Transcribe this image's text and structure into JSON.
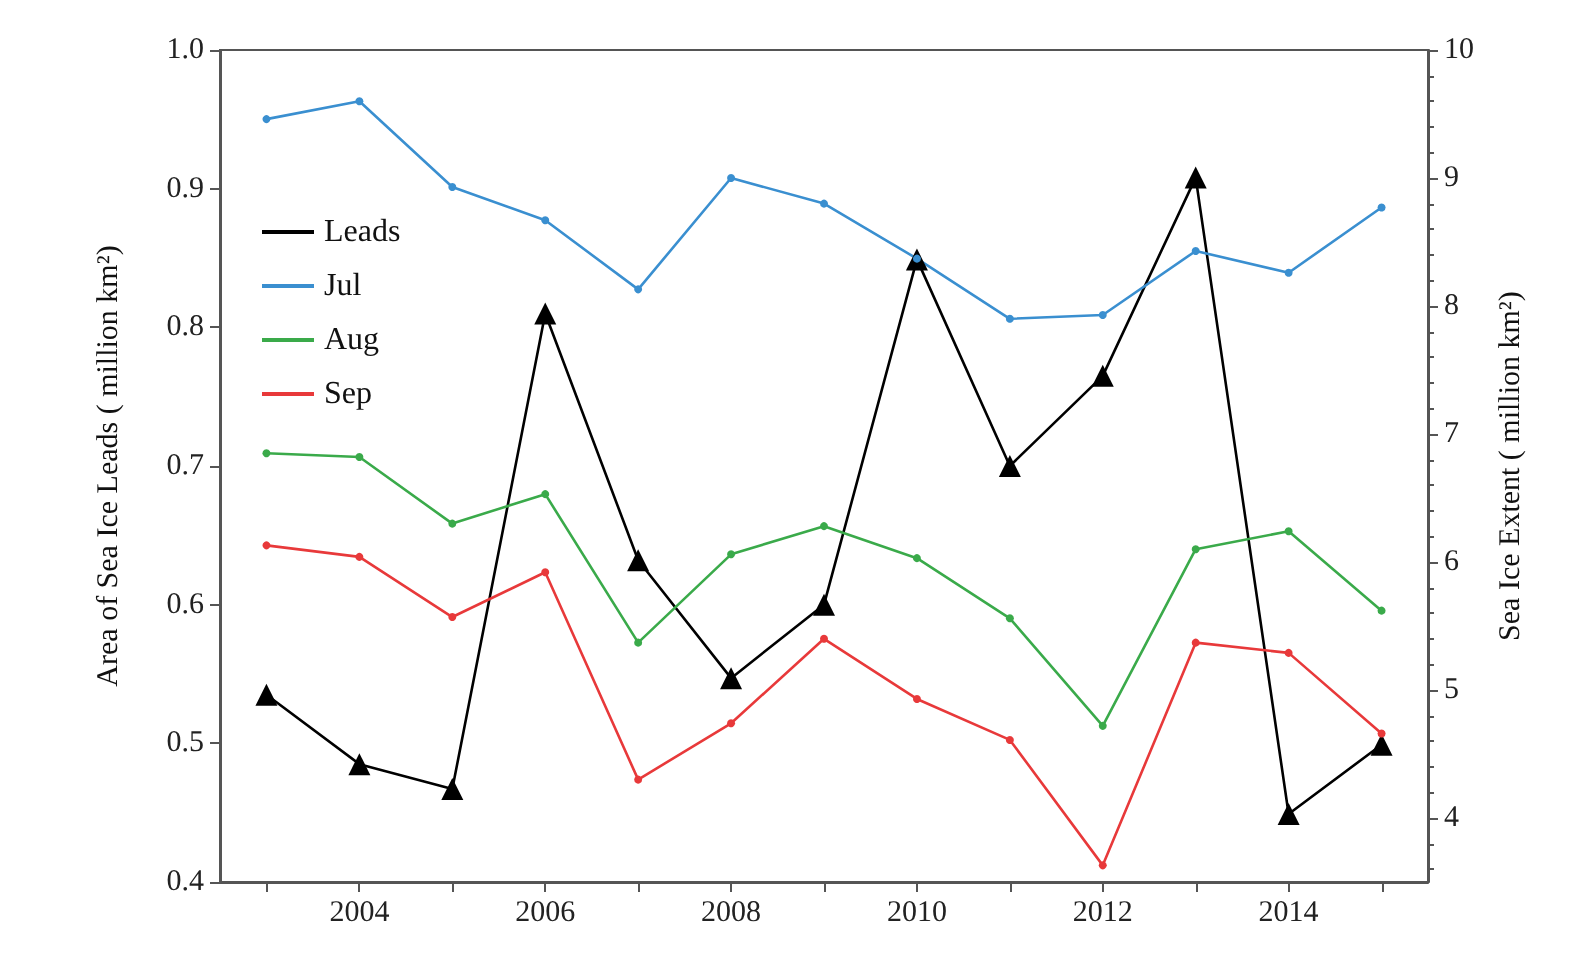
{
  "chart_data": {
    "type": "line",
    "ylabel": "Area of Sea Ice Leads ( million km²)",
    "y2label": "Sea Ice Extent ( million km²)",
    "x": [
      2003,
      2004,
      2005,
      2006,
      2007,
      2008,
      2009,
      2010,
      2011,
      2012,
      2013,
      2014,
      2015
    ],
    "series": [
      {
        "name": "Leads",
        "color": "#000000",
        "marker": "triangle",
        "values": [
          0.535,
          0.485,
          0.467,
          0.81,
          0.632,
          0.547,
          0.6,
          0.849,
          0.7,
          0.765,
          0.908,
          0.449,
          0.499
        ]
      },
      {
        "name": "Jul",
        "color": "#3a8fd0",
        "marker": "circle",
        "axis": "y2",
        "values": [
          9.46,
          9.6,
          8.93,
          8.67,
          8.13,
          9.0,
          8.8,
          8.37,
          7.9,
          7.93,
          8.43,
          8.26,
          8.77
        ]
      },
      {
        "name": "Aug",
        "color": "#3aaa4a",
        "marker": "circle",
        "axis": "y2",
        "values": [
          6.85,
          6.82,
          6.3,
          6.53,
          5.37,
          6.06,
          6.28,
          6.03,
          5.56,
          4.72,
          6.1,
          6.24,
          5.62
        ]
      },
      {
        "name": "Sep",
        "color": "#e8393a",
        "marker": "circle",
        "axis": "y2",
        "values": [
          6.13,
          6.04,
          5.57,
          5.92,
          4.3,
          4.74,
          5.4,
          4.93,
          4.61,
          3.63,
          5.37,
          5.29,
          4.66
        ]
      }
    ],
    "xlim": [
      2002.5,
      2015.5
    ],
    "xticks": [
      {
        "value": 2003,
        "label": null
      },
      2004,
      {
        "value": 2005,
        "label": null
      },
      2006,
      {
        "value": 2007,
        "label": null
      },
      2008,
      {
        "value": 2009,
        "label": null
      },
      2010,
      {
        "value": 2011,
        "label": null
      },
      2012,
      {
        "value": 2013,
        "label": null
      },
      2014,
      {
        "value": 2015,
        "label": null
      }
    ],
    "ylim": [
      0.4,
      1.0
    ],
    "yticks": [
      {
        "value": 0.4,
        "label": "0.4"
      },
      {
        "value": 0.5,
        "label": "0.5"
      },
      {
        "value": 0.6,
        "label": "0.6"
      },
      {
        "value": 0.7,
        "label": "0.7"
      },
      {
        "value": 0.8,
        "label": "0.8"
      },
      {
        "value": 0.9,
        "label": "0.9"
      },
      {
        "value": 1.0,
        "label": "1.0"
      }
    ],
    "y2lim": [
      3.5,
      10
    ],
    "y2ticks": [
      4,
      5,
      6,
      7,
      8,
      9,
      10
    ],
    "grid": false,
    "legend": "top left",
    "line_style": "solid"
  }
}
